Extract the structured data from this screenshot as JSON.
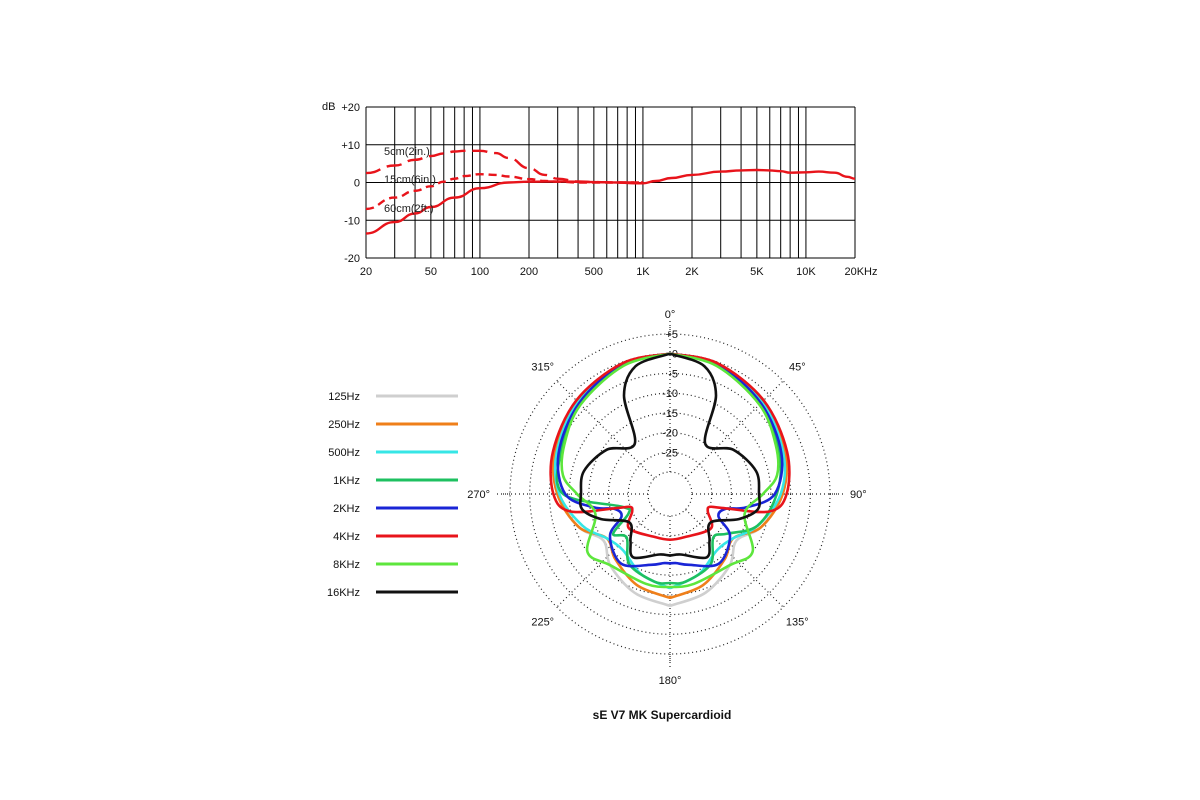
{
  "chart_data": [
    {
      "type": "line",
      "xscale": "log",
      "xlim": [
        20,
        20000
      ],
      "ylim": [
        -20,
        20
      ],
      "ylabel": "dB",
      "yticks": [
        20,
        10,
        0,
        -10,
        -20
      ],
      "ytick_labels": [
        "+20",
        "+10",
        "0",
        "-10",
        "-20"
      ],
      "xticks": [
        20,
        50,
        100,
        200,
        500,
        1000,
        2000,
        5000,
        10000,
        20000
      ],
      "xtick_labels": [
        "20",
        "50",
        "100",
        "200",
        "500",
        "1K",
        "2K",
        "5K",
        "10K",
        "20KHz"
      ],
      "grid": true,
      "series": [
        {
          "name": "5cm(2in.)",
          "color": "#e8141b",
          "dash": "long",
          "x": [
            20,
            30,
            40,
            50,
            60,
            70,
            80,
            100,
            125,
            150,
            200,
            250,
            300,
            400,
            500,
            700,
            1000
          ],
          "y": [
            2.5,
            4.5,
            6,
            7,
            7.7,
            8.2,
            8.4,
            8.4,
            7.8,
            6.5,
            3.8,
            2,
            1,
            0.3,
            0.1,
            0,
            0
          ]
        },
        {
          "name": "15cm(6in.)",
          "color": "#e8141b",
          "dash": "short",
          "x": [
            20,
            30,
            40,
            50,
            60,
            70,
            80,
            100,
            125,
            150,
            200,
            250,
            300,
            400,
            500,
            700,
            1000
          ],
          "y": [
            -7,
            -4,
            -2.2,
            -1,
            0.2,
            1,
            1.7,
            2.2,
            2,
            1.6,
            0.9,
            0.4,
            0.2,
            0,
            0,
            0,
            0
          ]
        },
        {
          "name": "60cm(2ft.)",
          "color": "#e8141b",
          "dash": "solid",
          "x": [
            20,
            30,
            40,
            50,
            70,
            100,
            150,
            200,
            300,
            500,
            700,
            900,
            1000,
            1200,
            1500,
            2000,
            3000,
            4000,
            5000,
            6000,
            7000,
            8000,
            10000,
            12000,
            15000,
            18000,
            20000
          ],
          "y": [
            -13.5,
            -10.5,
            -8.2,
            -6.5,
            -4,
            -1.5,
            0,
            0.2,
            0.3,
            0.1,
            0,
            -0.2,
            -0.2,
            0.4,
            1.2,
            2,
            2.9,
            3.2,
            3.3,
            3.2,
            3,
            2.6,
            2.7,
            2.9,
            2.6,
            1.5,
            1
          ]
        }
      ]
    },
    {
      "type": "polar",
      "title": "sE V7 MK Supercardioid",
      "rlim": [
        -30,
        5
      ],
      "rticks": [
        5,
        0,
        -5,
        -10,
        -15,
        -20,
        -25
      ],
      "rtick_labels": [
        "+5",
        "0",
        "-5",
        "-10",
        "-15",
        "-20",
        "-25"
      ],
      "angle_labels": [
        {
          "deg": 0,
          "label": "0°"
        },
        {
          "deg": 45,
          "label": "45°"
        },
        {
          "deg": 90,
          "label": "90°"
        },
        {
          "deg": 135,
          "label": "135°"
        },
        {
          "deg": 180,
          "label": "180°"
        },
        {
          "deg": 225,
          "label": "225°"
        },
        {
          "deg": 270,
          "label": "270°"
        },
        {
          "deg": 315,
          "label": "315°"
        }
      ],
      "legend_position": "left",
      "series": [
        {
          "name": "125Hz",
          "color": "#cfcfcf",
          "points": [
            [
              0,
              0
            ],
            [
              20,
              -0.5
            ],
            [
              45,
              -2
            ],
            [
              70,
              -4.5
            ],
            [
              90,
              -7
            ],
            [
              110,
              -11
            ],
            [
              125,
              -15
            ],
            [
              140,
              -12
            ],
            [
              160,
              -9
            ],
            [
              178,
              -7.5
            ],
            [
              180,
              -7.5
            ],
            [
              182,
              -7.5
            ],
            [
              200,
              -9
            ],
            [
              220,
              -12
            ],
            [
              235,
              -15
            ],
            [
              250,
              -11
            ],
            [
              270,
              -7
            ],
            [
              290,
              -4.5
            ],
            [
              315,
              -2
            ],
            [
              340,
              -0.5
            ],
            [
              360,
              0
            ]
          ]
        },
        {
          "name": "250Hz",
          "color": "#ef7f1a",
          "points": [
            [
              0,
              0
            ],
            [
              20,
              -0.5
            ],
            [
              45,
              -2
            ],
            [
              70,
              -4.5
            ],
            [
              90,
              -7
            ],
            [
              110,
              -11
            ],
            [
              125,
              -16
            ],
            [
              140,
              -14
            ],
            [
              160,
              -11
            ],
            [
              178,
              -9.5
            ],
            [
              180,
              -9.5
            ],
            [
              182,
              -9.5
            ],
            [
              200,
              -11
            ],
            [
              220,
              -14
            ],
            [
              235,
              -16
            ],
            [
              250,
              -11
            ],
            [
              270,
              -7
            ],
            [
              290,
              -4.5
            ],
            [
              315,
              -2
            ],
            [
              340,
              -0.5
            ],
            [
              360,
              0
            ]
          ]
        },
        {
          "name": "500Hz",
          "color": "#36e6e6",
          "points": [
            [
              0,
              0
            ],
            [
              20,
              -0.5
            ],
            [
              45,
              -2.5
            ],
            [
              70,
              -5
            ],
            [
              90,
              -7.5
            ],
            [
              110,
              -12
            ],
            [
              125,
              -16
            ],
            [
              140,
              -17
            ],
            [
              160,
              -14
            ],
            [
              178,
              -12
            ],
            [
              180,
              -12
            ],
            [
              182,
              -12
            ],
            [
              200,
              -14
            ],
            [
              220,
              -17
            ],
            [
              235,
              -16
            ],
            [
              250,
              -12
            ],
            [
              270,
              -7.5
            ],
            [
              290,
              -5
            ],
            [
              315,
              -2.5
            ],
            [
              340,
              -0.5
            ],
            [
              360,
              0
            ]
          ]
        },
        {
          "name": "1KHz",
          "color": "#1ec060",
          "points": [
            [
              0,
              0
            ],
            [
              20,
              -0.8
            ],
            [
              45,
              -3
            ],
            [
              70,
              -6
            ],
            [
              90,
              -8.5
            ],
            [
              110,
              -12
            ],
            [
              125,
              -18
            ],
            [
              135,
              -20
            ],
            [
              150,
              -15
            ],
            [
              170,
              -13
            ],
            [
              180,
              -13
            ],
            [
              190,
              -13
            ],
            [
              210,
              -15
            ],
            [
              225,
              -20
            ],
            [
              235,
              -18
            ],
            [
              245,
              -24
            ],
            [
              255,
              -23
            ],
            [
              270,
              -8.5
            ],
            [
              290,
              -6
            ],
            [
              315,
              -3
            ],
            [
              340,
              -0.8
            ],
            [
              360,
              0
            ]
          ]
        },
        {
          "name": "2KHz",
          "color": "#1a25d6",
          "points": [
            [
              0,
              0
            ],
            [
              20,
              -0.5
            ],
            [
              45,
              -3
            ],
            [
              70,
              -5.5
            ],
            [
              90,
              -9
            ],
            [
              100,
              -16
            ],
            [
              105,
              -21
            ],
            [
              115,
              -22
            ],
            [
              125,
              -17
            ],
            [
              145,
              -14
            ],
            [
              165,
              -17
            ],
            [
              175,
              -18
            ],
            [
              180,
              -18
            ],
            [
              185,
              -18
            ],
            [
              195,
              -17
            ],
            [
              215,
              -14
            ],
            [
              235,
              -17
            ],
            [
              245,
              -22
            ],
            [
              255,
              -21
            ],
            [
              260,
              -16
            ],
            [
              270,
              -9
            ],
            [
              290,
              -5.5
            ],
            [
              315,
              -3
            ],
            [
              340,
              -0.5
            ],
            [
              360,
              0
            ]
          ]
        },
        {
          "name": "4KHz",
          "color": "#e8141b",
          "points": [
            [
              0,
              0
            ],
            [
              20,
              -0.3
            ],
            [
              45,
              -2
            ],
            [
              70,
              -4
            ],
            [
              90,
              -6
            ],
            [
              100,
              -10
            ],
            [
              105,
              -22
            ],
            [
              108,
              -25
            ],
            [
              115,
              -25
            ],
            [
              130,
              -22
            ],
            [
              160,
              -24
            ],
            [
              180,
              -24
            ],
            [
              200,
              -24
            ],
            [
              230,
              -22
            ],
            [
              245,
              -25
            ],
            [
              252,
              -25
            ],
            [
              255,
              -22
            ],
            [
              260,
              -10
            ],
            [
              270,
              -6
            ],
            [
              290,
              -4
            ],
            [
              315,
              -2
            ],
            [
              340,
              -0.3
            ],
            [
              360,
              0
            ]
          ]
        },
        {
          "name": "8KHz",
          "color": "#5de63c",
          "points": [
            [
              0,
              0
            ],
            [
              20,
              -1
            ],
            [
              45,
              -3.5
            ],
            [
              65,
              -6
            ],
            [
              80,
              -8
            ],
            [
              90,
              -12
            ],
            [
              105,
              -16
            ],
            [
              125,
              -10
            ],
            [
              140,
              -12
            ],
            [
              165,
              -12
            ],
            [
              180,
              -12
            ],
            [
              195,
              -12
            ],
            [
              220,
              -12
            ],
            [
              235,
              -10
            ],
            [
              255,
              -16
            ],
            [
              270,
              -12
            ],
            [
              280,
              -8
            ],
            [
              295,
              -6
            ],
            [
              315,
              -3.5
            ],
            [
              340,
              -1
            ],
            [
              360,
              0
            ]
          ]
        },
        {
          "name": "16KHz",
          "color": "#111111",
          "points": [
            [
              0,
              0
            ],
            [
              15,
              -2
            ],
            [
              25,
              -8
            ],
            [
              35,
              -20
            ],
            [
              55,
              -16
            ],
            [
              75,
              -13
            ],
            [
              90,
              -13
            ],
            [
              100,
              -13
            ],
            [
              110,
              -17
            ],
            [
              125,
              -23
            ],
            [
              140,
              -20
            ],
            [
              150,
              -17
            ],
            [
              170,
              -20
            ],
            [
              180,
              -20
            ],
            [
              190,
              -20
            ],
            [
              210,
              -17
            ],
            [
              220,
              -20
            ],
            [
              235,
              -23
            ],
            [
              250,
              -17
            ],
            [
              260,
              -13
            ],
            [
              270,
              -13
            ],
            [
              285,
              -13
            ],
            [
              305,
              -16
            ],
            [
              325,
              -20
            ],
            [
              335,
              -8
            ],
            [
              345,
              -2
            ],
            [
              360,
              0
            ]
          ]
        }
      ]
    }
  ]
}
